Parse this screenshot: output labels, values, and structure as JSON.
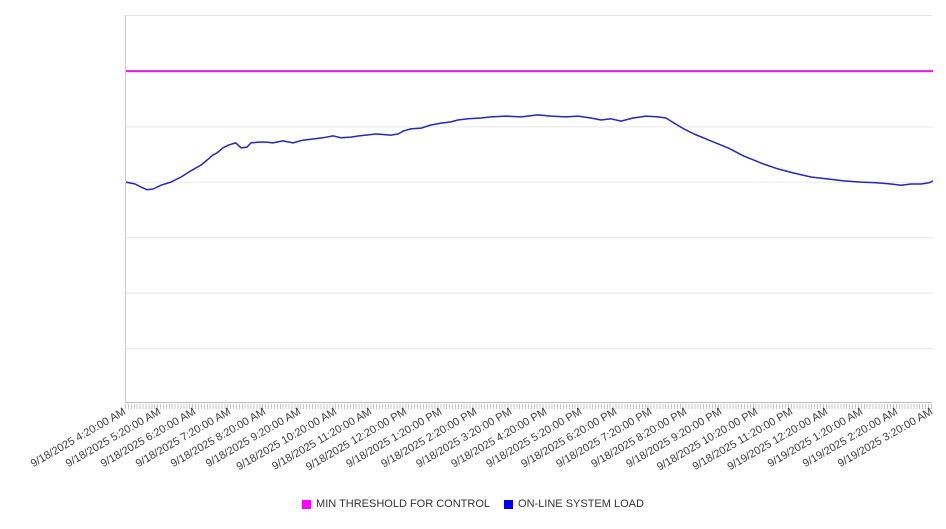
{
  "chart": {
    "legend": [
      {
        "label": "MIN THRESHOLD FOR CONTROL",
        "swatch_color": "#ff00ff"
      },
      {
        "label": "ON-LINE SYSTEM LOAD",
        "swatch_color": "#0000ee"
      }
    ]
  },
  "chart_data": {
    "type": "line",
    "title": "",
    "x_axis": {
      "categories": [
        "9/18/2025 4:20:00 AM",
        "9/18/2025 5:20:00 AM",
        "9/18/2025 6:20:00 AM",
        "9/18/2025 7:20:00 AM",
        "9/18/2025 8:20:00 AM",
        "9/18/2025 9:20:00 AM",
        "9/18/2025 10:20:00 AM",
        "9/18/2025 11:20:00 AM",
        "9/18/2025 12:20:00 PM",
        "9/18/2025 1:20:00 PM",
        "9/18/2025 2:20:00 PM",
        "9/18/2025 3:20:00 PM",
        "9/18/2025 4:20:00 PM",
        "9/18/2025 5:20:00 PM",
        "9/18/2025 6:20:00 PM",
        "9/18/2025 7:20:00 PM",
        "9/18/2025 8:20:00 PM",
        "9/18/2025 9:20:00 PM",
        "9/18/2025 10:20:00 PM",
        "9/18/2025 11:20:00 PM",
        "9/19/2025 12:20:00 AM",
        "9/19/2025 1:20:00 AM",
        "9/19/2025 2:20:00 AM",
        "9/19/2025 3:20:00 AM"
      ],
      "label_rotation_deg": -30,
      "minor_tick_interval_minutes": 5
    },
    "y_axis": {
      "tick_labels_visible": false,
      "gridline_divisions": 7,
      "range": [
        0,
        100
      ],
      "unit": "estimated % of plot height (axis unlabeled)"
    },
    "legend_position": "bottom-center",
    "grid": "horizontal-only",
    "series": [
      {
        "name": "MIN THRESHOLD FOR CONTROL",
        "color": "#e619e6",
        "style": "horizontal-threshold",
        "value": 85.8
      },
      {
        "name": "ON-LINE SYSTEM LOAD",
        "color": "#2626bd",
        "style": "line",
        "x_unit": "hours since 9/18/2025 4:20:00 AM",
        "points": [
          [
            0,
            57.2
          ],
          [
            0.26,
            56.7
          ],
          [
            0.43,
            55.9
          ],
          [
            0.6,
            55.2
          ],
          [
            0.77,
            55.4
          ],
          [
            1,
            56.4
          ],
          [
            1.28,
            57.2
          ],
          [
            1.57,
            58.5
          ],
          [
            1.85,
            60.1
          ],
          [
            2.14,
            61.6
          ],
          [
            2.34,
            63.1
          ],
          [
            2.48,
            64.2
          ],
          [
            2.59,
            64.7
          ],
          [
            2.76,
            66
          ],
          [
            2.94,
            66.8
          ],
          [
            3.13,
            67.3
          ],
          [
            3.28,
            66
          ],
          [
            3.45,
            66.2
          ],
          [
            3.56,
            67.3
          ],
          [
            3.79,
            67.5
          ],
          [
            3.99,
            67.5
          ],
          [
            4.19,
            67.3
          ],
          [
            4.47,
            67.8
          ],
          [
            4.76,
            67.3
          ],
          [
            5.04,
            68
          ],
          [
            5.33,
            68.3
          ],
          [
            5.61,
            68.6
          ],
          [
            5.9,
            69.1
          ],
          [
            6.13,
            68.6
          ],
          [
            6.41,
            68.8
          ],
          [
            6.64,
            69.1
          ],
          [
            7.13,
            69.6
          ],
          [
            7.55,
            69.3
          ],
          [
            7.75,
            69.6
          ],
          [
            7.92,
            70.4
          ],
          [
            8.12,
            70.9
          ],
          [
            8.41,
            71.1
          ],
          [
            8.69,
            71.9
          ],
          [
            8.98,
            72.4
          ],
          [
            9.26,
            72.7
          ],
          [
            9.46,
            73.2
          ],
          [
            9.75,
            73.5
          ],
          [
            10.12,
            73.7
          ],
          [
            10.4,
            74
          ],
          [
            10.83,
            74.2
          ],
          [
            11.26,
            74
          ],
          [
            11.74,
            74.5
          ],
          [
            12.11,
            74.2
          ],
          [
            12.54,
            74
          ],
          [
            12.88,
            74.2
          ],
          [
            13.25,
            73.7
          ],
          [
            13.54,
            73.2
          ],
          [
            13.82,
            73.5
          ],
          [
            14.11,
            72.9
          ],
          [
            14.45,
            73.7
          ],
          [
            14.82,
            74.2
          ],
          [
            15.16,
            74
          ],
          [
            15.39,
            73.7
          ],
          [
            15.62,
            72.4
          ],
          [
            15.9,
            70.9
          ],
          [
            16.19,
            69.6
          ],
          [
            16.67,
            67.8
          ],
          [
            17.16,
            66
          ],
          [
            17.61,
            63.9
          ],
          [
            18.1,
            62.1
          ],
          [
            18.58,
            60.6
          ],
          [
            19.04,
            59.5
          ],
          [
            19.52,
            58.5
          ],
          [
            20.01,
            58
          ],
          [
            20.46,
            57.5
          ],
          [
            20.95,
            57.2
          ],
          [
            21.38,
            57
          ],
          [
            21.8,
            56.7
          ],
          [
            22.09,
            56.4
          ],
          [
            22.37,
            56.7
          ],
          [
            22.66,
            56.7
          ],
          [
            22.89,
            57
          ],
          [
            23,
            57.5
          ]
        ]
      }
    ]
  }
}
